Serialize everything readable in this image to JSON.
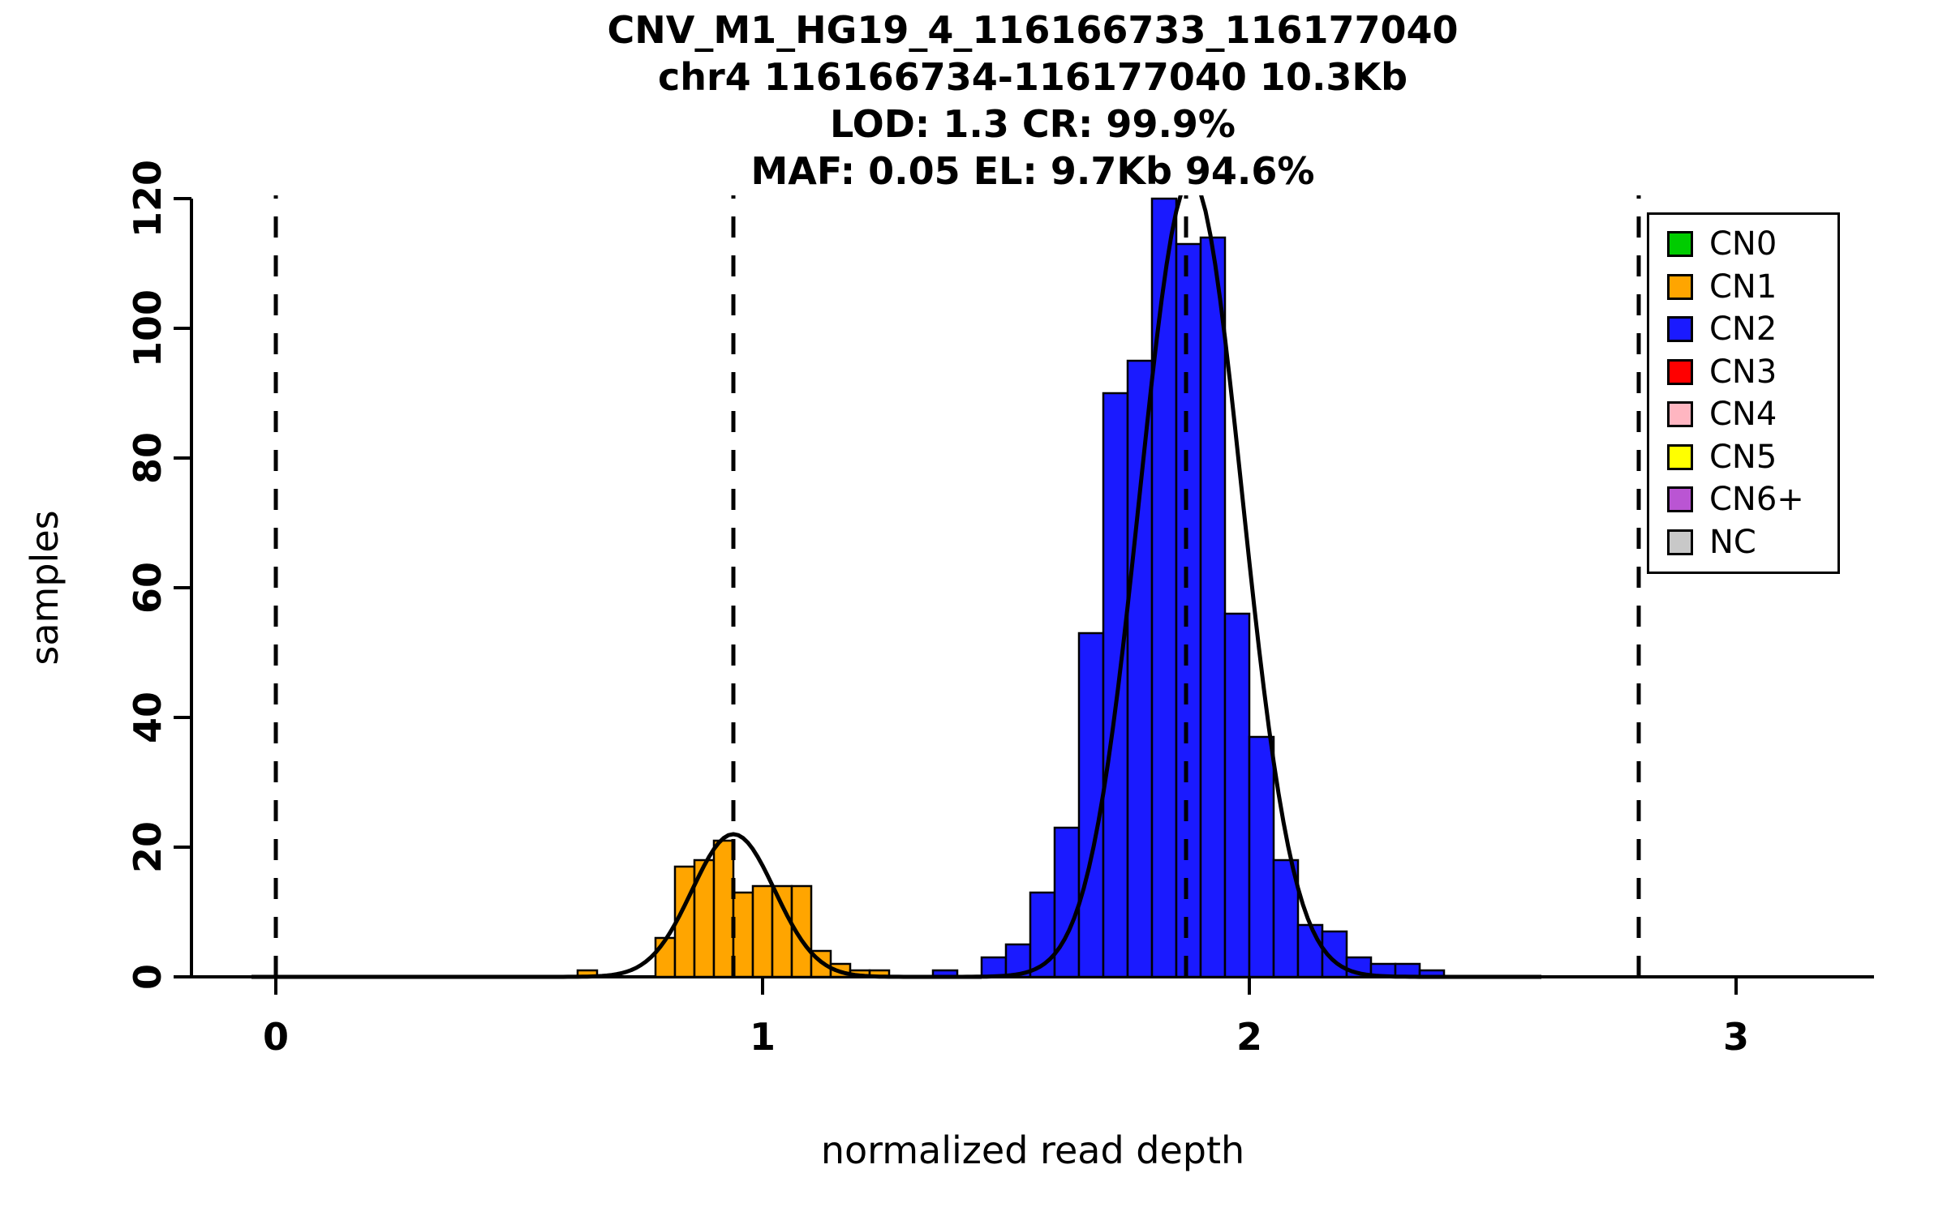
{
  "titles": [
    "CNV_M1_HG19_4_116166733_116177040",
    "chr4 116166734-116177040 10.3Kb",
    "LOD: 1.3 CR: 99.9%",
    "MAF: 0.05 EL: 9.7Kb 94.6%"
  ],
  "axes": {
    "xlabel": "normalized read depth",
    "ylabel": "samples",
    "x_ticks": [
      0,
      1,
      2,
      3
    ],
    "y_ticks": [
      0,
      20,
      40,
      60,
      80,
      100,
      120
    ]
  },
  "legend": {
    "items": [
      {
        "label": "CN0",
        "color": "#00CC00"
      },
      {
        "label": "CN1",
        "color": "#FFA500"
      },
      {
        "label": "CN2",
        "color": "#1A1AFF"
      },
      {
        "label": "CN3",
        "color": "#FF0000"
      },
      {
        "label": "CN4",
        "color": "#FFB6C1"
      },
      {
        "label": "CN5",
        "color": "#FFFF00"
      },
      {
        "label": "CN6+",
        "color": "#BA55D3"
      },
      {
        "label": "NC",
        "color": "#C8C8C8"
      }
    ]
  },
  "chart_data": {
    "type": "bar",
    "title": "CNV_M1_HG19_4_116166733_116177040",
    "subtitle_lines": [
      "chr4 116166734-116177040 10.3Kb",
      "LOD: 1.3 CR: 99.9%",
      "MAF: 0.05 EL: 9.7Kb 94.6%"
    ],
    "xlabel": "normalized read depth",
    "ylabel": "samples",
    "xlim": [
      -0.17,
      3.27
    ],
    "ylim": [
      0,
      120
    ],
    "grid": false,
    "legend_position": "top-right",
    "series": [
      {
        "name": "CN1",
        "color": "#FFA500",
        "bin_width": 0.04,
        "bins": [
          [
            0.62,
            1
          ],
          [
            0.78,
            6
          ],
          [
            0.82,
            17
          ],
          [
            0.86,
            18
          ],
          [
            0.9,
            21
          ],
          [
            0.94,
            13
          ],
          [
            0.98,
            14
          ],
          [
            1.02,
            14
          ],
          [
            1.06,
            14
          ],
          [
            1.1,
            4
          ],
          [
            1.14,
            2
          ],
          [
            1.18,
            1
          ],
          [
            1.22,
            1
          ]
        ]
      },
      {
        "name": "CN2",
        "color": "#1A1AFF",
        "bin_width": 0.05,
        "bins": [
          [
            1.35,
            1
          ],
          [
            1.45,
            3
          ],
          [
            1.5,
            5
          ],
          [
            1.55,
            13
          ],
          [
            1.6,
            23
          ],
          [
            1.65,
            53
          ],
          [
            1.7,
            90
          ],
          [
            1.75,
            95
          ],
          [
            1.8,
            120
          ],
          [
            1.85,
            113
          ],
          [
            1.9,
            114
          ],
          [
            1.95,
            56
          ],
          [
            2.0,
            37
          ],
          [
            2.05,
            18
          ],
          [
            2.1,
            8
          ],
          [
            2.15,
            7
          ],
          [
            2.2,
            3
          ],
          [
            2.25,
            2
          ],
          [
            2.3,
            2
          ],
          [
            2.35,
            1
          ]
        ]
      }
    ],
    "curves": [
      {
        "name": "CN1-gaussian-fit",
        "mean": 0.94,
        "sd": 0.085,
        "peak": 22,
        "range": [
          -0.05,
          1.45
        ]
      },
      {
        "name": "CN2-gaussian-fit",
        "mean": 1.88,
        "sd": 0.105,
        "peak": 123,
        "range": [
          1.3,
          2.6
        ]
      }
    ],
    "dashed_lines_x": [
      0,
      0.94,
      1.87,
      2.8
    ]
  }
}
